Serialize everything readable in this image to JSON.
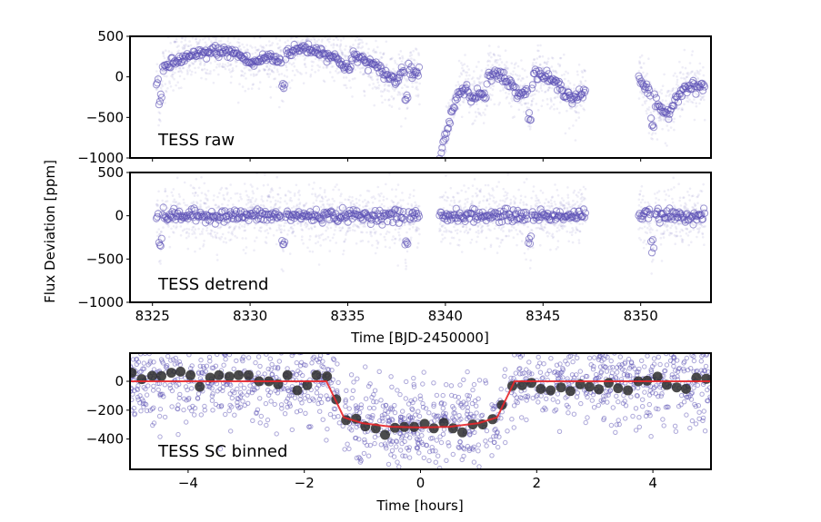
{
  "figure": {
    "shared_ylabel": "Flux Deviation [ppm]",
    "colors": {
      "points": "#5a4fb4",
      "binned": "#2b2b2b",
      "model": "#e8262a"
    }
  },
  "chart_data": [
    {
      "type": "scatter",
      "panel_label": "TESS raw",
      "xlim": [
        8323.85,
        8353.6
      ],
      "ylim": [
        -1000,
        500
      ],
      "yticks": [
        500,
        0,
        -500,
        -1000
      ],
      "xticks": [
        8325,
        8330,
        8335,
        8340,
        8345,
        8350
      ],
      "xtick_labels_shown": false,
      "segments": [
        [
          8325.2,
          8338.7
        ],
        [
          8339.7,
          8347.2
        ],
        [
          8349.9,
          8353.3
        ]
      ],
      "transit_times": [
        8325.4,
        8331.7,
        8338.0,
        8344.3,
        8350.6
      ],
      "transit_depth": -320,
      "trend": [
        [
          8325.2,
          -100
        ],
        [
          8325.6,
          120
        ],
        [
          8326.6,
          230
        ],
        [
          8328.2,
          320
        ],
        [
          8329.3,
          290
        ],
        [
          8330.1,
          160
        ],
        [
          8330.9,
          250
        ],
        [
          8331.6,
          195
        ],
        [
          8331.9,
          300
        ],
        [
          8332.8,
          360
        ],
        [
          8333.8,
          300
        ],
        [
          8334.6,
          195
        ],
        [
          8335.1,
          85
        ],
        [
          8335.3,
          270
        ],
        [
          8336.2,
          160
        ],
        [
          8337.5,
          -60
        ],
        [
          8337.8,
          105
        ],
        [
          8338.7,
          40
        ],
        [
          8339.7,
          -990
        ],
        [
          8340.2,
          -540
        ],
        [
          8340.7,
          -203
        ],
        [
          8341.1,
          -111
        ],
        [
          8341.3,
          -300
        ],
        [
          8341.65,
          -185
        ],
        [
          8342.06,
          -255
        ],
        [
          8342.2,
          58
        ],
        [
          8342.8,
          22
        ],
        [
          8343.75,
          -185
        ],
        [
          8344.4,
          -185
        ],
        [
          8344.56,
          58
        ],
        [
          8345.4,
          -35
        ],
        [
          8346.5,
          -260
        ],
        [
          8347.2,
          -203
        ],
        [
          8349.9,
          2
        ],
        [
          8350.55,
          -240
        ],
        [
          8351.0,
          -427
        ],
        [
          8351.4,
          -446
        ],
        [
          8351.8,
          -277
        ],
        [
          8352.15,
          -129
        ],
        [
          8352.6,
          -129
        ],
        [
          8353.3,
          -111
        ]
      ]
    },
    {
      "type": "scatter",
      "panel_label": "TESS detrend",
      "xlim": [
        8323.85,
        8353.6
      ],
      "ylim": [
        -1000,
        500
      ],
      "yticks": [
        500,
        0,
        -500,
        -1000
      ],
      "xticks": [
        8325,
        8330,
        8335,
        8340,
        8345,
        8350
      ],
      "xlabel": "Time [BJD-2450000]",
      "segments": [
        [
          8325.2,
          8338.7
        ],
        [
          8339.7,
          8347.2
        ],
        [
          8349.9,
          8353.3
        ]
      ],
      "transit_times": [
        8325.4,
        8331.7,
        8338.0,
        8344.3,
        8350.6
      ],
      "transit_depth": -320
    },
    {
      "type": "scatter",
      "panel_label": "TESS SC binned",
      "xlabel": "Time [hours]",
      "xlim": [
        -5,
        5
      ],
      "ylim": [
        -610,
        195
      ],
      "xticks": [
        -4,
        -2,
        0,
        2,
        4
      ],
      "yticks": [
        0,
        -200,
        -400
      ],
      "binned": [
        [
          -4.97,
          59
        ],
        [
          -4.8,
          15
        ],
        [
          -4.62,
          38
        ],
        [
          -4.46,
          36
        ],
        [
          -4.29,
          59
        ],
        [
          -4.13,
          67
        ],
        [
          -3.96,
          42
        ],
        [
          -3.8,
          -38
        ],
        [
          -3.62,
          25
        ],
        [
          -3.47,
          42
        ],
        [
          -3.29,
          32
        ],
        [
          -3.13,
          42
        ],
        [
          -2.96,
          42
        ],
        [
          -2.78,
          0
        ],
        [
          -2.61,
          0
        ],
        [
          -2.45,
          -21
        ],
        [
          -2.29,
          42
        ],
        [
          -2.12,
          -63
        ],
        [
          -1.95,
          -27
        ],
        [
          -1.79,
          42
        ],
        [
          -1.61,
          34
        ],
        [
          -1.45,
          -126
        ],
        [
          -1.28,
          -269
        ],
        [
          -1.11,
          -259
        ],
        [
          -0.95,
          -312
        ],
        [
          -0.77,
          -326
        ],
        [
          -0.61,
          -371
        ],
        [
          -0.44,
          -322
        ],
        [
          -0.28,
          -316
        ],
        [
          -0.11,
          -316
        ],
        [
          0.07,
          -295
        ],
        [
          0.23,
          -326
        ],
        [
          0.4,
          -288
        ],
        [
          0.56,
          -326
        ],
        [
          0.72,
          -354
        ],
        [
          0.9,
          -299
        ],
        [
          1.07,
          -299
        ],
        [
          1.24,
          -263
        ],
        [
          1.4,
          -164
        ],
        [
          1.58,
          -32
        ],
        [
          1.75,
          -27
        ],
        [
          1.91,
          -11
        ],
        [
          2.07,
          -53
        ],
        [
          2.24,
          -63
        ],
        [
          2.42,
          -42
        ],
        [
          2.58,
          -67
        ],
        [
          2.75,
          -21
        ],
        [
          2.91,
          -38
        ],
        [
          3.07,
          -55
        ],
        [
          3.24,
          -11
        ],
        [
          3.4,
          -48
        ],
        [
          3.57,
          -63
        ],
        [
          3.75,
          0
        ],
        [
          3.9,
          4
        ],
        [
          4.08,
          32
        ],
        [
          4.24,
          -25
        ],
        [
          4.41,
          -42
        ],
        [
          4.57,
          -53
        ],
        [
          4.75,
          25
        ],
        [
          4.92,
          17
        ]
      ],
      "model": [
        [
          -5,
          0
        ],
        [
          -1.62,
          0
        ],
        [
          -1.32,
          -250
        ],
        [
          -1.0,
          -290
        ],
        [
          -0.5,
          -315
        ],
        [
          0,
          -320
        ],
        [
          0.5,
          -315
        ],
        [
          1.0,
          -290
        ],
        [
          1.32,
          -250
        ],
        [
          1.62,
          0
        ],
        [
          5,
          0
        ]
      ]
    }
  ]
}
